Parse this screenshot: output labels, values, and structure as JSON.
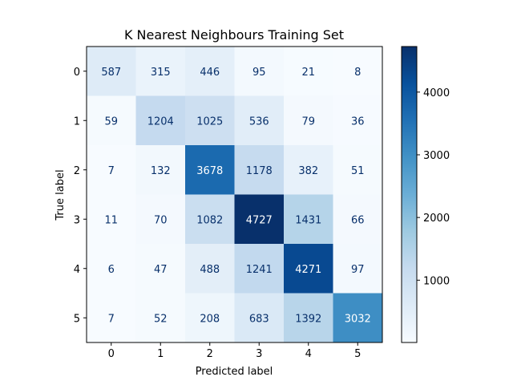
{
  "chart_data": {
    "type": "heatmap",
    "title": "K Nearest Neighbours Training Set",
    "xlabel": "Predicted label",
    "ylabel": "True label",
    "x_tick_labels": [
      "0",
      "1",
      "2",
      "3",
      "4",
      "5"
    ],
    "y_tick_labels": [
      "0",
      "1",
      "2",
      "3",
      "4",
      "5"
    ],
    "matrix": [
      [
        587,
        315,
        446,
        95,
        21,
        8
      ],
      [
        59,
        1204,
        1025,
        536,
        79,
        36
      ],
      [
        7,
        132,
        3678,
        1178,
        382,
        51
      ],
      [
        11,
        70,
        1082,
        4727,
        1431,
        66
      ],
      [
        6,
        47,
        488,
        1241,
        4271,
        97
      ],
      [
        7,
        52,
        208,
        683,
        1392,
        3032
      ]
    ],
    "colormap": "Blues",
    "value_range": [
      6,
      4727
    ],
    "colorbar_ticks": [
      1000,
      2000,
      3000,
      4000
    ],
    "grid": false
  }
}
